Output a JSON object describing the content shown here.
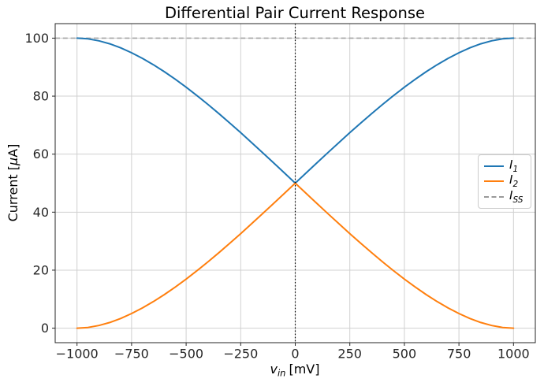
{
  "title": "Differential Pair Current Response",
  "axes": {
    "xlabel_var": "v",
    "xlabel_sub": "in",
    "xlabel_unit": "[mV]",
    "ylabel_pre": "Current [",
    "ylabel_mu": "μ",
    "ylabel_post": "A]"
  },
  "legend": {
    "items": [
      {
        "symbol": "I",
        "sub": "1",
        "color": "#1f77b4",
        "dash": false
      },
      {
        "symbol": "I",
        "sub": "2",
        "color": "#ff7f0e",
        "dash": false
      },
      {
        "symbol": "I",
        "sub": "SS",
        "color": "#999999",
        "dash": true
      }
    ],
    "position": "center right"
  },
  "chart_data": {
    "type": "line",
    "title": "Differential Pair Current Response",
    "xlabel": "v_in [mV]",
    "ylabel": "Current [μA]",
    "xlim": [
      -1100,
      1100
    ],
    "ylim": [
      -5,
      105
    ],
    "xticks": [
      -1000,
      -750,
      -500,
      -250,
      0,
      250,
      500,
      750,
      1000
    ],
    "yticks": [
      0,
      20,
      40,
      60,
      80,
      100
    ],
    "grid": true,
    "x": [
      -1000,
      -950,
      -900,
      -850,
      -800,
      -750,
      -700,
      -650,
      -600,
      -550,
      -500,
      -450,
      -400,
      -350,
      -300,
      -250,
      -200,
      -150,
      -100,
      -50,
      0,
      50,
      100,
      150,
      200,
      250,
      300,
      350,
      400,
      450,
      500,
      550,
      600,
      650,
      700,
      750,
      800,
      850,
      900,
      950,
      1000
    ],
    "series": [
      {
        "name": "I_1",
        "color": "#1f77b4",
        "values": [
          100,
          99.76,
          99.09,
          98.04,
          96.65,
          94.96,
          93.01,
          90.82,
          88.42,
          85.83,
          83.07,
          80.17,
          77.13,
          73.98,
          70.73,
          67.4,
          64.0,
          60.55,
          57.05,
          53.53,
          50,
          53.53,
          57.05,
          60.55,
          64.0,
          67.4,
          70.73,
          73.98,
          77.13,
          80.17,
          83.07,
          85.83,
          88.42,
          90.82,
          93.01,
          94.96,
          96.65,
          98.04,
          99.09,
          99.76,
          100
        ]
      },
      {
        "name": "I_2",
        "color": "#ff7f0e",
        "values": [
          0,
          0.24,
          0.91,
          1.96,
          3.35,
          5.04,
          6.99,
          9.18,
          11.58,
          14.17,
          16.93,
          19.83,
          22.87,
          26.02,
          29.27,
          32.6,
          36.0,
          39.45,
          42.95,
          46.47,
          50,
          46.47,
          42.95,
          39.45,
          36.0,
          32.6,
          29.27,
          26.02,
          22.87,
          19.83,
          16.93,
          14.17,
          11.58,
          9.18,
          6.99,
          5.04,
          3.35,
          1.96,
          0.91,
          0.24,
          0
        ]
      },
      {
        "name": "I_SS",
        "type": "hline",
        "y": 100,
        "color": "#a5a5a5",
        "dash": true
      }
    ],
    "annotations": [
      {
        "type": "vline",
        "x": 0,
        "color": "#000000",
        "style": "dotted"
      }
    ],
    "legend_position": "center right"
  }
}
